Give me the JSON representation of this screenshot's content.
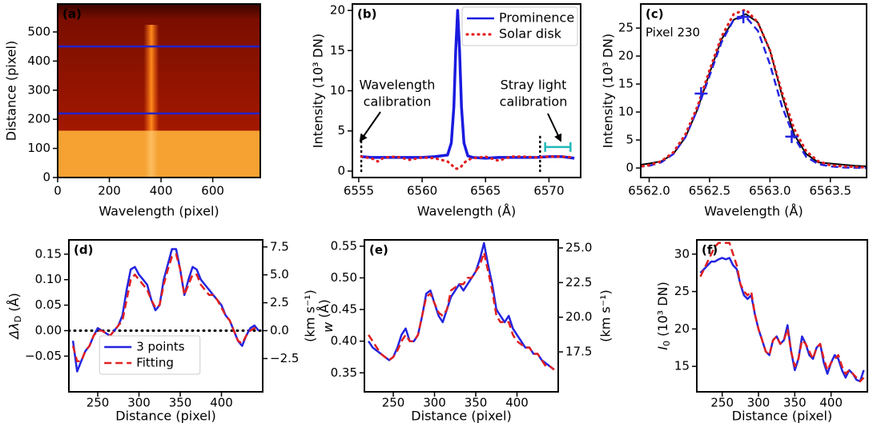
{
  "chart_data": [
    {
      "type": "image",
      "panel_label": "(a)",
      "xlabel": "Wavelength (pixel)",
      "ylabel": "Distance (pixel)",
      "xlim": [
        0,
        784
      ],
      "ylim": [
        0,
        596
      ],
      "xticks": [
        0,
        200,
        400,
        600
      ],
      "yticks": [
        0,
        100,
        200,
        300,
        400,
        500
      ],
      "hlines": [
        220,
        450
      ],
      "hline_color": "#2323c8",
      "hline_style": "solid"
    },
    {
      "type": "line",
      "panel_label": "(b)",
      "xlabel": "Wavelength (Å)",
      "ylabel": "Intensity (10³ DN)",
      "xlim": [
        6554.5,
        6572.5
      ],
      "ylim": [
        -0.8,
        20.8
      ],
      "xticks": [
        6555,
        6560,
        6565,
        6570
      ],
      "yticks": [
        0,
        5,
        10,
        15,
        20
      ],
      "legend": "upper right",
      "x": [
        6555.2,
        6556,
        6556.5,
        6557,
        6558,
        6559,
        6560,
        6561,
        6562,
        6562.3,
        6562.5,
        6562.65,
        6562.8,
        6562.95,
        6563.1,
        6563.3,
        6563.6,
        6564,
        6565,
        6566,
        6567,
        6568,
        6569,
        6570,
        6571,
        6572
      ],
      "series": [
        {
          "name": "Prominence",
          "color": "#1a1ae0",
          "linestyle": "solid",
          "values": [
            1.8,
            1.7,
            1.7,
            1.7,
            1.7,
            1.7,
            1.7,
            1.8,
            2.0,
            3.5,
            8,
            15,
            20,
            15,
            8,
            3.5,
            1.9,
            1.7,
            1.6,
            1.7,
            1.7,
            1.7,
            1.7,
            1.8,
            1.8,
            1.6
          ]
        },
        {
          "name": "Solar disk",
          "color": "#e02020",
          "linestyle": "dotted",
          "values": [
            1.8,
            1.6,
            1.2,
            1.7,
            1.8,
            1.4,
            1.7,
            1.6,
            1.2,
            0.8,
            0.5,
            0.3,
            0.3,
            0.4,
            0.6,
            1.0,
            1.4,
            1.6,
            1.8,
            1.3,
            1.8,
            1.8,
            1.7,
            1.8,
            1.8,
            1.7
          ]
        }
      ],
      "vlines": [
        6555.2,
        6569.3
      ],
      "bracket": {
        "x": [
          6569.7,
          6571.7
        ],
        "y": 3,
        "color": "#20b8b8"
      },
      "annotations": [
        [
          "Wavelength",
          "calibration"
        ],
        [
          "Stray light",
          "calibration"
        ]
      ]
    },
    {
      "type": "line",
      "panel_label": "(c)",
      "xlabel": "Wavelength (Å)",
      "ylabel": "Intensity (10³ DN)",
      "annotation": "Pixel 230",
      "xlim": [
        6561.93,
        6563.8
      ],
      "ylim": [
        -1.7,
        29.3
      ],
      "xticks": [
        {
          "value": 6562,
          "label": "6562.0"
        },
        6562.5,
        {
          "value": 6563,
          "label": "6563.0"
        },
        6563.5
      ],
      "yticks": [
        0,
        5,
        10,
        15,
        20,
        25
      ],
      "x": [
        6561.9,
        6562.0,
        6562.1,
        6562.2,
        6562.3,
        6562.4,
        6562.5,
        6562.6,
        6562.7,
        6562.8,
        6562.9,
        6563.0,
        6563.1,
        6563.2,
        6563.3,
        6563.4,
        6563.5,
        6563.6,
        6563.7,
        6563.8
      ],
      "series": [
        {
          "color": "#000000",
          "linestyle": "solid",
          "values": [
            0.5,
            0.8,
            1.2,
            2.5,
            5.5,
            10.5,
            17,
            23,
            26.5,
            27.5,
            26,
            21,
            13,
            6,
            2.5,
            1,
            0.8,
            0.6,
            0.4,
            0.3
          ]
        },
        {
          "color": "#2323e0",
          "linestyle": "dashed",
          "values": [
            0.2,
            0.4,
            1,
            2.5,
            5.5,
            10.5,
            16.5,
            22.5,
            26.5,
            27,
            24.5,
            18.5,
            11,
            5.5,
            2,
            0.7,
            0.3,
            0.1,
            0.05,
            0.02
          ]
        },
        {
          "color": "#e02020",
          "linestyle": "dotted",
          "values": [
            0.2,
            0.5,
            1.2,
            2.8,
            6,
            11,
            17.5,
            23.5,
            27.5,
            28.3,
            26,
            21,
            13.5,
            7,
            3,
            1.2,
            0.5,
            0.3,
            0.2,
            0.1
          ]
        },
        {
          "color": "#2323e0",
          "marker": "+",
          "x": [
            6562.43,
            6562.78,
            6563.18
          ],
          "values": [
            13.3,
            27,
            5.6
          ]
        }
      ]
    },
    {
      "type": "line",
      "panel_label": "(d)",
      "xlabel": "Distance (pixel)",
      "ylabel": [
        "Δλ",
        "D",
        " (Å)"
      ],
      "y2label": "(km s⁻¹)",
      "xlim": [
        215,
        450
      ],
      "ylim": [
        -0.12,
        0.178
      ],
      "y2lim": [
        -5.48,
        8.13
      ],
      "xticks": [
        250,
        300,
        350,
        400
      ],
      "yticks": [
        {
          "value": -0.05,
          "label": "−0.05"
        },
        {
          "value": 0,
          "label": "0.00"
        },
        0.05,
        {
          "value": 0.1,
          "label": "0.10"
        },
        0.15
      ],
      "y2ticks": [
        {
          "value": -2.5,
          "label": "−2.5"
        },
        {
          "value": 0,
          "label": "0.0"
        },
        2.5,
        {
          "value": 5,
          "label": "5.0"
        },
        7.5
      ],
      "legend": "lower center",
      "hlines": [
        0
      ],
      "hline_color": "#000000",
      "hline_style": "dotted",
      "x": [
        220,
        225,
        230,
        235,
        240,
        245,
        250,
        255,
        260,
        265,
        270,
        275,
        280,
        285,
        290,
        295,
        300,
        305,
        310,
        315,
        320,
        325,
        330,
        335,
        340,
        345,
        350,
        355,
        360,
        365,
        370,
        375,
        380,
        385,
        390,
        395,
        400,
        405,
        410,
        415,
        420,
        425,
        430,
        435,
        440,
        445
      ],
      "series": [
        {
          "name": "3 points",
          "color": "#2323e0",
          "linestyle": "solid",
          "values": [
            -0.02,
            -0.08,
            -0.06,
            -0.04,
            -0.03,
            -0.01,
            0.005,
            0.0,
            -0.005,
            -0.01,
            0.0,
            0.01,
            0.03,
            0.08,
            0.12,
            0.125,
            0.11,
            0.1,
            0.09,
            0.06,
            0.04,
            0.05,
            0.1,
            0.13,
            0.16,
            0.16,
            0.12,
            0.07,
            0.1,
            0.125,
            0.12,
            0.1,
            0.09,
            0.08,
            0.07,
            0.06,
            0.05,
            0.03,
            0.02,
            0.0,
            -0.02,
            -0.03,
            -0.01,
            0.005,
            0.01,
            0.0
          ]
        },
        {
          "name": "Fitting",
          "color": "#e02020",
          "linestyle": "dashed",
          "values": [
            -0.03,
            -0.06,
            -0.06,
            -0.04,
            -0.03,
            -0.01,
            0.0,
            0.0,
            -0.005,
            -0.01,
            0.0,
            0.01,
            0.02,
            0.06,
            0.1,
            0.11,
            0.1,
            0.09,
            0.08,
            0.06,
            0.045,
            0.05,
            0.09,
            0.12,
            0.145,
            0.15,
            0.12,
            0.07,
            0.09,
            0.11,
            0.11,
            0.09,
            0.08,
            0.07,
            0.07,
            0.06,
            0.045,
            0.03,
            0.02,
            0.0,
            -0.02,
            -0.025,
            -0.01,
            0.0,
            0.005,
            0.0
          ]
        }
      ]
    },
    {
      "type": "line",
      "panel_label": "(e)",
      "xlabel": "Distance (pixel)",
      "ylabel": [
        "w",
        "",
        " (Å)"
      ],
      "y2label": "(km s⁻¹)",
      "xlim": [
        215,
        450
      ],
      "ylim": [
        0.32,
        0.56
      ],
      "y2lim": [
        14.62,
        25.58
      ],
      "xticks": [
        250,
        300,
        350,
        400
      ],
      "yticks": [
        0.35,
        {
          "value": 0.4,
          "label": "0.40"
        },
        0.45,
        {
          "value": 0.5,
          "label": "0.50"
        },
        0.55
      ],
      "y2ticks": [
        17.5,
        {
          "value": 20,
          "label": "20.0"
        },
        22.5,
        {
          "value": 25,
          "label": "25.0"
        }
      ],
      "x": [
        220,
        225,
        230,
        235,
        240,
        245,
        250,
        255,
        260,
        265,
        270,
        275,
        280,
        285,
        290,
        295,
        300,
        305,
        310,
        315,
        320,
        325,
        330,
        335,
        340,
        345,
        350,
        355,
        360,
        365,
        370,
        375,
        380,
        385,
        390,
        395,
        400,
        405,
        410,
        415,
        420,
        425,
        430,
        435,
        440,
        445
      ],
      "series": [
        {
          "color": "#2323e0",
          "linestyle": "solid",
          "values": [
            0.4,
            0.39,
            0.385,
            0.38,
            0.375,
            0.37,
            0.375,
            0.39,
            0.41,
            0.42,
            0.4,
            0.4,
            0.41,
            0.44,
            0.475,
            0.48,
            0.46,
            0.44,
            0.43,
            0.45,
            0.47,
            0.48,
            0.49,
            0.48,
            0.49,
            0.5,
            0.51,
            0.53,
            0.555,
            0.52,
            0.49,
            0.45,
            0.44,
            0.43,
            0.44,
            0.42,
            0.41,
            0.4,
            0.39,
            0.39,
            0.38,
            0.38,
            0.37,
            0.365,
            0.36,
            0.355
          ]
        },
        {
          "color": "#e02020",
          "linestyle": "dashed",
          "values": [
            0.41,
            0.4,
            0.39,
            0.38,
            0.375,
            0.37,
            0.375,
            0.385,
            0.4,
            0.41,
            0.4,
            0.4,
            0.41,
            0.44,
            0.47,
            0.475,
            0.46,
            0.445,
            0.44,
            0.45,
            0.48,
            0.485,
            0.49,
            0.49,
            0.5,
            0.5,
            0.51,
            0.52,
            0.54,
            0.51,
            0.48,
            0.44,
            0.43,
            0.43,
            0.43,
            0.41,
            0.4,
            0.395,
            0.39,
            0.39,
            0.38,
            0.38,
            0.37,
            0.36,
            0.36,
            0.355
          ]
        }
      ]
    },
    {
      "type": "line",
      "panel_label": "(f)",
      "xlabel": "Distance (pixel)",
      "ylabel": [
        "I",
        "0",
        " (10³ DN)"
      ],
      "xlim": [
        215,
        450
      ],
      "ylim": [
        11.6,
        31.9
      ],
      "xticks": [
        250,
        300,
        350,
        400
      ],
      "yticks": [
        15,
        20,
        25,
        30
      ],
      "x": [
        220,
        225,
        230,
        235,
        240,
        245,
        250,
        255,
        260,
        265,
        270,
        275,
        280,
        285,
        290,
        295,
        300,
        305,
        310,
        315,
        320,
        325,
        330,
        335,
        340,
        345,
        350,
        355,
        360,
        365,
        370,
        375,
        380,
        385,
        390,
        395,
        400,
        405,
        410,
        415,
        420,
        425,
        430,
        435,
        440,
        445
      ],
      "series": [
        {
          "color": "#2323e0",
          "linestyle": "solid",
          "values": [
            27.5,
            28,
            28.5,
            29,
            29,
            29.3,
            29.5,
            29.3,
            29.5,
            28.5,
            28,
            26,
            24.5,
            24,
            24.5,
            22,
            20,
            18.5,
            17,
            16.5,
            18.5,
            19,
            18,
            18.5,
            20.5,
            17,
            14.5,
            16,
            19,
            18,
            16.5,
            16,
            17.5,
            18,
            15.5,
            14,
            15.5,
            16.5,
            16,
            14.5,
            13.5,
            14.5,
            14,
            13.2,
            13,
            14.5
          ]
        },
        {
          "color": "#e02020",
          "linestyle": "dashed",
          "values": [
            27,
            28,
            29,
            30,
            31,
            31.5,
            31.5,
            31.5,
            31.5,
            30,
            28.5,
            26,
            25,
            24.5,
            25,
            22,
            20,
            18.5,
            17,
            16.5,
            18.5,
            19,
            18,
            18.5,
            20,
            17,
            15,
            16,
            18.5,
            18,
            17,
            16,
            17.5,
            18,
            16,
            14.5,
            15.5,
            16,
            16.5,
            15,
            14,
            14.5,
            14,
            13.5,
            13,
            13.5
          ]
        }
      ]
    }
  ]
}
